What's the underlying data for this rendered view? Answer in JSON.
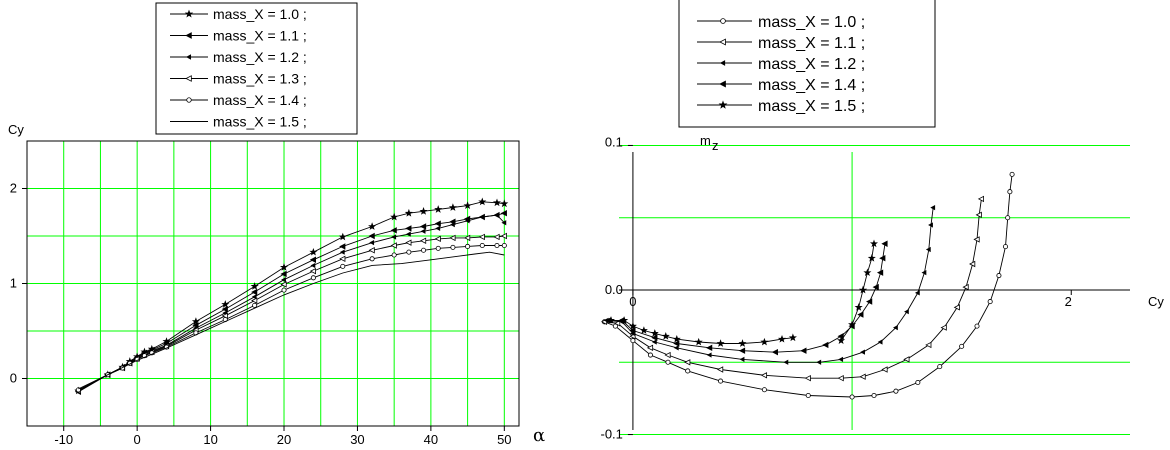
{
  "chart_data": [
    {
      "type": "line",
      "ylabel": "Cy",
      "xlabel": "α",
      "xlim": [
        -15,
        52
      ],
      "ylim": [
        -0.5,
        2.5
      ],
      "x_ticks": [
        -10,
        0,
        10,
        20,
        30,
        40,
        50
      ],
      "x_tick_labels": [
        "-10",
        "0",
        "10",
        "20",
        "30",
        "40",
        "50"
      ],
      "y_ticks": [
        0,
        1,
        2
      ],
      "y_tick_labels": [
        "0",
        "1",
        "2"
      ],
      "grid": true,
      "legend_position": "top-center",
      "legend": [
        {
          "label": "mass_X = 1.0 ;",
          "marker": "star"
        },
        {
          "label": "mass_X = 1.1 ;",
          "marker": "tri-left-filled"
        },
        {
          "label": "mass_X = 1.2 ;",
          "marker": "tri-left-small"
        },
        {
          "label": "mass_X = 1.3 ;",
          "marker": "tri-left-open"
        },
        {
          "label": "mass_X = 1.4 ;",
          "marker": "circle-open"
        },
        {
          "label": "mass_X = 1.5 ;",
          "marker": "none"
        }
      ],
      "series": [
        {
          "marker": "star",
          "points": [
            [
              -8,
              -0.13
            ],
            [
              -4,
              0.04
            ],
            [
              -2,
              0.12
            ],
            [
              -1,
              0.18
            ],
            [
              0,
              0.23
            ],
            [
              1,
              0.28
            ],
            [
              2,
              0.31
            ],
            [
              4,
              0.39
            ],
            [
              8,
              0.6
            ],
            [
              12,
              0.78
            ],
            [
              16,
              0.97
            ],
            [
              20,
              1.17
            ],
            [
              24,
              1.33
            ],
            [
              28,
              1.49
            ],
            [
              32,
              1.6
            ],
            [
              35,
              1.7
            ],
            [
              37,
              1.74
            ],
            [
              39,
              1.76
            ],
            [
              41,
              1.78
            ],
            [
              43,
              1.8
            ],
            [
              45,
              1.82
            ],
            [
              47,
              1.86
            ],
            [
              49,
              1.85
            ],
            [
              50,
              1.84
            ]
          ]
        },
        {
          "marker": "tri-left-filled",
          "points": [
            [
              -8,
              -0.14
            ],
            [
              -4,
              0.04
            ],
            [
              -2,
              0.12
            ],
            [
              -1,
              0.17
            ],
            [
              0,
              0.22
            ],
            [
              1,
              0.27
            ],
            [
              2,
              0.3
            ],
            [
              4,
              0.37
            ],
            [
              8,
              0.56
            ],
            [
              12,
              0.73
            ],
            [
              16,
              0.91
            ],
            [
              20,
              1.1
            ],
            [
              24,
              1.25
            ],
            [
              28,
              1.39
            ],
            [
              32,
              1.5
            ],
            [
              35,
              1.56
            ],
            [
              37,
              1.58
            ],
            [
              39,
              1.6
            ],
            [
              41,
              1.63
            ],
            [
              43,
              1.65
            ],
            [
              45,
              1.68
            ],
            [
              47,
              1.7
            ],
            [
              49,
              1.72
            ],
            [
              50,
              1.74
            ]
          ]
        },
        {
          "marker": "tri-left-small",
          "points": [
            [
              -8,
              -0.13
            ],
            [
              -4,
              0.04
            ],
            [
              -2,
              0.12
            ],
            [
              -1,
              0.17
            ],
            [
              0,
              0.22
            ],
            [
              1,
              0.26
            ],
            [
              2,
              0.29
            ],
            [
              4,
              0.35
            ],
            [
              8,
              0.53
            ],
            [
              12,
              0.69
            ],
            [
              16,
              0.86
            ],
            [
              20,
              1.04
            ],
            [
              24,
              1.19
            ],
            [
              28,
              1.33
            ],
            [
              32,
              1.43
            ],
            [
              35,
              1.49
            ],
            [
              37,
              1.52
            ],
            [
              39,
              1.55
            ],
            [
              41,
              1.58
            ],
            [
              43,
              1.62
            ],
            [
              45,
              1.66
            ],
            [
              47,
              1.7
            ],
            [
              49,
              1.72
            ],
            [
              50,
              1.64
            ]
          ]
        },
        {
          "marker": "tri-left-open",
          "points": [
            [
              -8,
              -0.13
            ],
            [
              -4,
              0.04
            ],
            [
              -2,
              0.11
            ],
            [
              -1,
              0.16
            ],
            [
              0,
              0.21
            ],
            [
              1,
              0.25
            ],
            [
              2,
              0.28
            ],
            [
              4,
              0.34
            ],
            [
              8,
              0.51
            ],
            [
              12,
              0.66
            ],
            [
              16,
              0.82
            ],
            [
              20,
              0.99
            ],
            [
              24,
              1.13
            ],
            [
              28,
              1.26
            ],
            [
              32,
              1.35
            ],
            [
              35,
              1.4
            ],
            [
              37,
              1.43
            ],
            [
              39,
              1.45
            ],
            [
              41,
              1.47
            ],
            [
              43,
              1.48
            ],
            [
              45,
              1.48
            ],
            [
              47,
              1.49
            ],
            [
              49,
              1.49
            ],
            [
              50,
              1.5
            ]
          ]
        },
        {
          "marker": "circle-open",
          "points": [
            [
              -8,
              -0.12
            ],
            [
              -4,
              0.04
            ],
            [
              -2,
              0.11
            ],
            [
              -1,
              0.16
            ],
            [
              0,
              0.2
            ],
            [
              1,
              0.24
            ],
            [
              2,
              0.27
            ],
            [
              4,
              0.33
            ],
            [
              8,
              0.48
            ],
            [
              12,
              0.62
            ],
            [
              16,
              0.77
            ],
            [
              20,
              0.93
            ],
            [
              24,
              1.06
            ],
            [
              28,
              1.18
            ],
            [
              32,
              1.26
            ],
            [
              35,
              1.3
            ],
            [
              37,
              1.33
            ],
            [
              39,
              1.35
            ],
            [
              41,
              1.37
            ],
            [
              43,
              1.38
            ],
            [
              45,
              1.39
            ],
            [
              47,
              1.4
            ],
            [
              49,
              1.4
            ],
            [
              50,
              1.4
            ]
          ]
        },
        {
          "marker": "none",
          "points": [
            [
              -8,
              -0.11
            ],
            [
              -4,
              0.04
            ],
            [
              0,
              0.19
            ],
            [
              4,
              0.32
            ],
            [
              8,
              0.46
            ],
            [
              12,
              0.6
            ],
            [
              16,
              0.74
            ],
            [
              20,
              0.88
            ],
            [
              24,
              1.0
            ],
            [
              28,
              1.11
            ],
            [
              32,
              1.19
            ],
            [
              36,
              1.21
            ],
            [
              40,
              1.25
            ],
            [
              44,
              1.29
            ],
            [
              46,
              1.31
            ],
            [
              48,
              1.33
            ],
            [
              50,
              1.3
            ]
          ]
        }
      ]
    },
    {
      "type": "line",
      "ylabel": "m_z",
      "ylabel_main": "m",
      "ylabel_sub": "z",
      "xlabel": "Cy",
      "xlim": [
        -0.1,
        2.3
      ],
      "ylim": [
        -0.11,
        0.11
      ],
      "x_ticks": [
        0,
        2
      ],
      "x_tick_labels": [
        "0",
        "2"
      ],
      "y_ticks": [
        -0.1,
        0.0,
        0.1
      ],
      "y_tick_labels": [
        "-0.1",
        "0.0",
        "0.1"
      ],
      "x_gridlines": [
        1
      ],
      "y_gridlines": [
        -0.1,
        -0.05,
        0.0,
        0.05,
        0.1
      ],
      "grid": true,
      "legend_position": "top-center",
      "legend": [
        {
          "label": "mass_X = 1.0 ;",
          "marker": "circle-open"
        },
        {
          "label": "mass_X = 1.1 ;",
          "marker": "tri-left-open"
        },
        {
          "label": "mass_X = 1.2 ;",
          "marker": "tri-left-small"
        },
        {
          "label": "mass_X = 1.4 ;",
          "marker": "tri-left-filled"
        },
        {
          "label": "mass_X = 1.5 ;",
          "marker": "star"
        }
      ],
      "series": [
        {
          "marker": "circle-open",
          "points": [
            [
              -0.13,
              -0.022
            ],
            [
              -0.08,
              -0.025
            ],
            [
              0.0,
              -0.035
            ],
            [
              0.08,
              -0.045
            ],
            [
              0.16,
              -0.05
            ],
            [
              0.25,
              -0.056
            ],
            [
              0.4,
              -0.063
            ],
            [
              0.6,
              -0.069
            ],
            [
              0.8,
              -0.073
            ],
            [
              1.0,
              -0.074
            ],
            [
              1.1,
              -0.073
            ],
            [
              1.2,
              -0.07
            ],
            [
              1.3,
              -0.064
            ],
            [
              1.4,
              -0.053
            ],
            [
              1.5,
              -0.039
            ],
            [
              1.57,
              -0.025
            ],
            [
              1.63,
              -0.008
            ],
            [
              1.67,
              0.01
            ],
            [
              1.7,
              0.03
            ],
            [
              1.71,
              0.05
            ],
            [
              1.72,
              0.068
            ],
            [
              1.73,
              0.08
            ]
          ]
        },
        {
          "marker": "tri-left-open",
          "points": [
            [
              -0.13,
              -0.022
            ],
            [
              -0.07,
              -0.023
            ],
            [
              0.0,
              -0.032
            ],
            [
              0.08,
              -0.04
            ],
            [
              0.16,
              -0.045
            ],
            [
              0.25,
              -0.05
            ],
            [
              0.4,
              -0.055
            ],
            [
              0.6,
              -0.059
            ],
            [
              0.8,
              -0.061
            ],
            [
              0.95,
              -0.061
            ],
            [
              1.05,
              -0.06
            ],
            [
              1.15,
              -0.055
            ],
            [
              1.25,
              -0.048
            ],
            [
              1.35,
              -0.038
            ],
            [
              1.42,
              -0.026
            ],
            [
              1.48,
              -0.012
            ],
            [
              1.52,
              0.002
            ],
            [
              1.55,
              0.018
            ],
            [
              1.57,
              0.035
            ],
            [
              1.58,
              0.052
            ],
            [
              1.59,
              0.063
            ]
          ]
        },
        {
          "marker": "tri-left-small",
          "points": [
            [
              -0.12,
              -0.021
            ],
            [
              -0.05,
              -0.022
            ],
            [
              0.0,
              -0.03
            ],
            [
              0.1,
              -0.036
            ],
            [
              0.2,
              -0.04
            ],
            [
              0.35,
              -0.045
            ],
            [
              0.5,
              -0.048
            ],
            [
              0.7,
              -0.05
            ],
            [
              0.85,
              -0.05
            ],
            [
              0.95,
              -0.048
            ],
            [
              1.05,
              -0.043
            ],
            [
              1.13,
              -0.036
            ],
            [
              1.2,
              -0.026
            ],
            [
              1.25,
              -0.015
            ],
            [
              1.3,
              -0.002
            ],
            [
              1.33,
              0.012
            ],
            [
              1.35,
              0.028
            ],
            [
              1.36,
              0.045
            ],
            [
              1.37,
              0.057
            ]
          ]
        },
        {
          "marker": "tri-left-filled",
          "points": [
            [
              -0.11,
              -0.021
            ],
            [
              -0.05,
              -0.021
            ],
            [
              0.0,
              -0.028
            ],
            [
              0.1,
              -0.033
            ],
            [
              0.2,
              -0.037
            ],
            [
              0.35,
              -0.04
            ],
            [
              0.5,
              -0.042
            ],
            [
              0.65,
              -0.043
            ],
            [
              0.78,
              -0.042
            ],
            [
              0.88,
              -0.038
            ],
            [
              0.95,
              -0.032
            ],
            [
              1.0,
              -0.025
            ],
            [
              1.04,
              -0.017
            ],
            [
              1.08,
              -0.008
            ],
            [
              1.11,
              0.002
            ],
            [
              1.13,
              0.012
            ],
            [
              1.14,
              0.022
            ],
            [
              1.15,
              0.032
            ]
          ]
        },
        {
          "marker": "star",
          "points": [
            [
              -0.1,
              -0.021
            ],
            [
              -0.04,
              -0.021
            ],
            [
              0.0,
              -0.025
            ],
            [
              0.05,
              -0.028
            ],
            [
              0.1,
              -0.03
            ],
            [
              0.15,
              -0.032
            ],
            [
              0.2,
              -0.034
            ],
            [
              0.3,
              -0.036
            ],
            [
              0.4,
              -0.037
            ],
            [
              0.5,
              -0.037
            ],
            [
              0.6,
              -0.036
            ],
            [
              0.68,
              -0.034
            ],
            [
              0.73,
              -0.033
            ]
          ]
        },
        {
          "marker": "star",
          "points": [
            [
              0.95,
              -0.035
            ],
            [
              1.0,
              -0.024
            ],
            [
              1.03,
              -0.012
            ],
            [
              1.05,
              0.0
            ],
            [
              1.07,
              0.012
            ],
            [
              1.09,
              0.022
            ],
            [
              1.1,
              0.032
            ]
          ]
        }
      ]
    }
  ]
}
